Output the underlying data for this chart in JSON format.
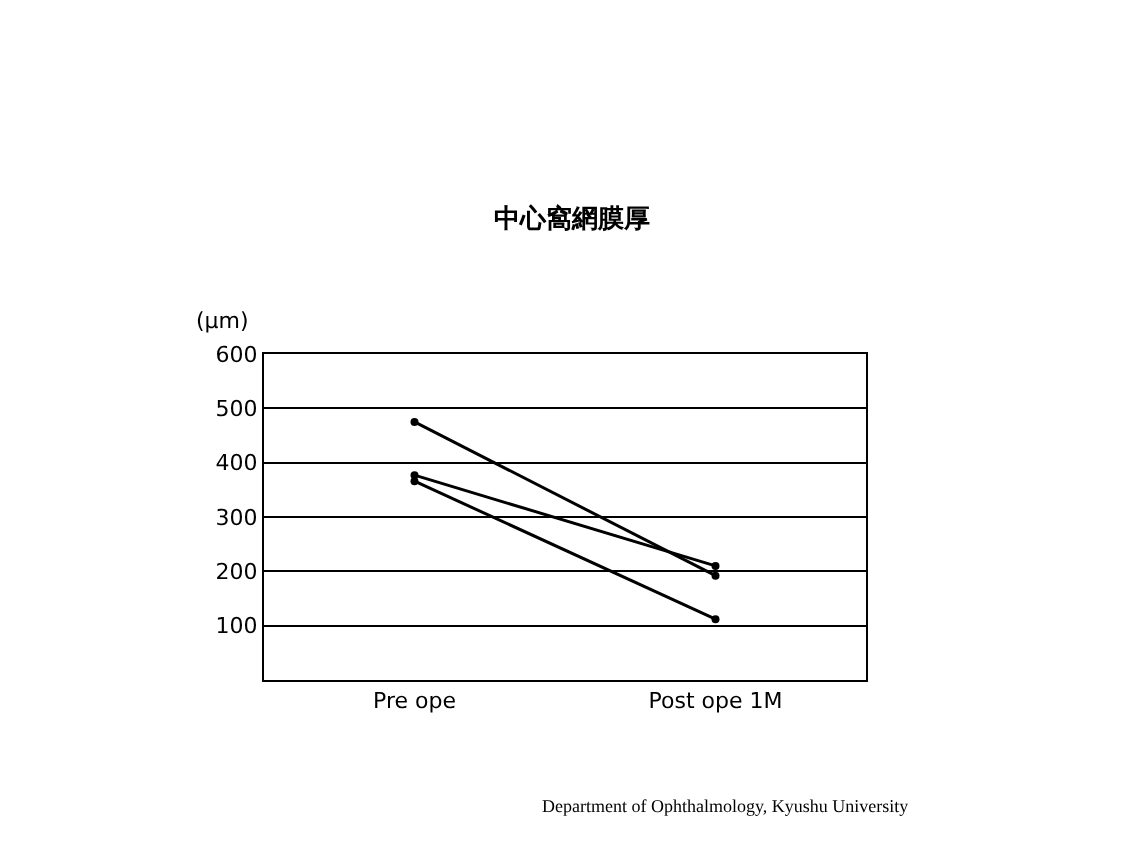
{
  "chart_data": {
    "type": "line",
    "title": "中心窩網膜厚",
    "ylabel": "(μm)",
    "categories": [
      "Pre ope",
      "Post ope 1M"
    ],
    "series": [
      {
        "color": "#000000",
        "values": [
          475,
          192
        ]
      },
      {
        "color": "#000000",
        "values": [
          377,
          210
        ]
      },
      {
        "color": "#000000",
        "values": [
          366,
          112
        ]
      }
    ],
    "ylim": [
      0,
      600
    ],
    "yticks": [
      100,
      200,
      300,
      400,
      500,
      600
    ],
    "grid": "y",
    "marker": "circle",
    "line_style": "solid",
    "annotations": [
      "Department of Ophthalmology, Kyushu University"
    ]
  }
}
